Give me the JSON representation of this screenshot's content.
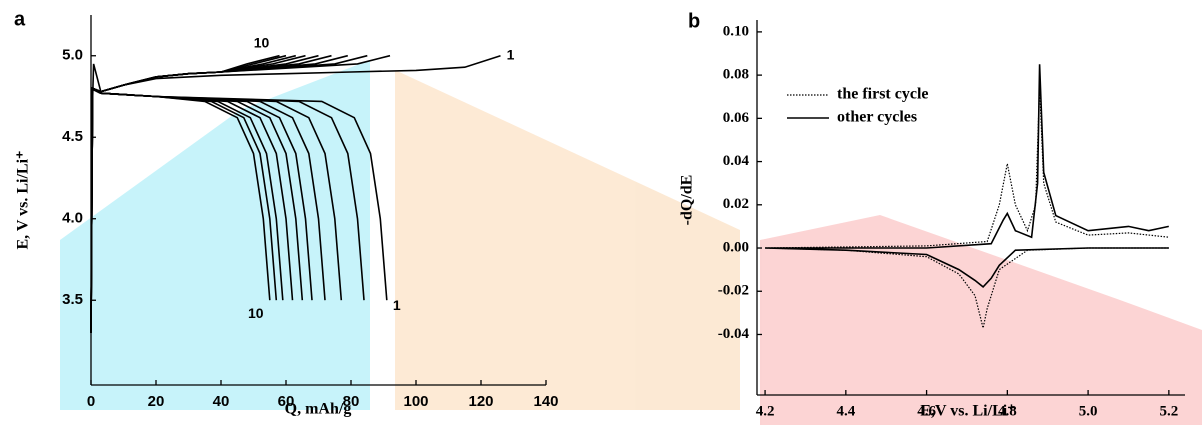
{
  "chart_data": [
    {
      "type": "line",
      "panel_label": "a",
      "xlabel": "Q, mAh/g",
      "ylabel": "E, V  vs. Li/Li⁺",
      "xlim": [
        0,
        140
      ],
      "ylim": [
        2.98,
        5.25
      ],
      "xticks": [
        0,
        20,
        40,
        60,
        80,
        100,
        120,
        140
      ],
      "yticks": [
        3.5,
        {
          "value": 4,
          "label": "4.0"
        },
        4.5,
        {
          "value": 5,
          "label": "5.0"
        }
      ],
      "annotations": [
        "10",
        "1",
        "10",
        "1"
      ],
      "series": [
        {
          "color": "#000000",
          "x": [
            0,
            0.3,
            0.8,
            3,
            10,
            20,
            40,
            60,
            80,
            100,
            115,
            126
          ],
          "values": [
            3.3,
            4.6,
            4.95,
            4.78,
            4.82,
            4.86,
            4.88,
            4.89,
            4.9,
            4.91,
            4.93,
            5.0
          ]
        },
        {
          "color": "#000000",
          "x": [
            0,
            0.5,
            3,
            10,
            20,
            30,
            40,
            82,
            92
          ],
          "values": [
            3.3,
            4.8,
            4.78,
            4.82,
            4.87,
            4.89,
            4.9,
            4.95,
            5.0
          ]
        },
        {
          "color": "#000000",
          "x": [
            0,
            0.5,
            3,
            10,
            20,
            30,
            40,
            75,
            85
          ],
          "values": [
            3.3,
            4.8,
            4.78,
            4.82,
            4.87,
            4.89,
            4.9,
            4.95,
            5.0
          ]
        },
        {
          "color": "#000000",
          "x": [
            0,
            0.5,
            3,
            10,
            20,
            30,
            40,
            69,
            79
          ],
          "values": [
            3.3,
            4.8,
            4.78,
            4.82,
            4.87,
            4.89,
            4.9,
            4.95,
            5.0
          ]
        },
        {
          "color": "#000000",
          "x": [
            0,
            0.5,
            3,
            10,
            20,
            30,
            40,
            64,
            74
          ],
          "values": [
            3.3,
            4.8,
            4.78,
            4.82,
            4.87,
            4.89,
            4.9,
            4.95,
            5.0
          ]
        },
        {
          "color": "#000000",
          "x": [
            0,
            0.5,
            3,
            10,
            20,
            30,
            40,
            60,
            70
          ],
          "values": [
            3.3,
            4.8,
            4.78,
            4.82,
            4.87,
            4.89,
            4.9,
            4.95,
            5.0
          ]
        },
        {
          "color": "#000000",
          "x": [
            0,
            0.5,
            3,
            10,
            20,
            30,
            40,
            56,
            66
          ],
          "values": [
            3.3,
            4.8,
            4.78,
            4.82,
            4.87,
            4.89,
            4.9,
            4.95,
            5.0
          ]
        },
        {
          "color": "#000000",
          "x": [
            0,
            0.5,
            3,
            10,
            20,
            30,
            40,
            53,
            63
          ],
          "values": [
            3.3,
            4.8,
            4.78,
            4.82,
            4.87,
            4.89,
            4.9,
            4.95,
            5.0
          ]
        },
        {
          "color": "#000000",
          "x": [
            0,
            0.5,
            3,
            10,
            20,
            30,
            40,
            50,
            60
          ],
          "values": [
            3.3,
            4.8,
            4.78,
            4.82,
            4.87,
            4.89,
            4.9,
            4.95,
            5.0
          ]
        },
        {
          "color": "#000000",
          "x": [
            0,
            0.5,
            3,
            10,
            20,
            30,
            40,
            48,
            58
          ],
          "values": [
            3.3,
            4.8,
            4.78,
            4.82,
            4.87,
            4.89,
            4.9,
            4.95,
            5.0
          ]
        },
        {
          "color": "#000000",
          "x": [
            0,
            3,
            20,
            71,
            81,
            86,
            89,
            91
          ],
          "values": [
            4.8,
            4.77,
            4.75,
            4.72,
            4.62,
            4.4,
            4.0,
            3.5
          ]
        },
        {
          "color": "#000000",
          "x": [
            0,
            3,
            20,
            64,
            74,
            79,
            82,
            84
          ],
          "values": [
            4.8,
            4.77,
            4.75,
            4.72,
            4.62,
            4.4,
            4.0,
            3.5
          ]
        },
        {
          "color": "#000000",
          "x": [
            0,
            3,
            20,
            57,
            67,
            72,
            75,
            77
          ],
          "values": [
            4.8,
            4.77,
            4.75,
            4.72,
            4.62,
            4.4,
            4.0,
            3.5
          ]
        },
        {
          "color": "#000000",
          "x": [
            0,
            3,
            20,
            52,
            62,
            67,
            70,
            72
          ],
          "values": [
            4.8,
            4.77,
            4.75,
            4.72,
            4.62,
            4.4,
            4.0,
            3.5
          ]
        },
        {
          "color": "#000000",
          "x": [
            0,
            3,
            20,
            48,
            58,
            63,
            66,
            68
          ],
          "values": [
            4.8,
            4.77,
            4.75,
            4.72,
            4.62,
            4.4,
            4.0,
            3.5
          ]
        },
        {
          "color": "#000000",
          "x": [
            0,
            3,
            20,
            45,
            55,
            60,
            63,
            65
          ],
          "values": [
            4.8,
            4.77,
            4.75,
            4.72,
            4.62,
            4.4,
            4.0,
            3.5
          ]
        },
        {
          "color": "#000000",
          "x": [
            0,
            3,
            20,
            42,
            52,
            57,
            60,
            62
          ],
          "values": [
            4.8,
            4.77,
            4.75,
            4.72,
            4.62,
            4.4,
            4.0,
            3.5
          ]
        },
        {
          "color": "#000000",
          "x": [
            0,
            3,
            20,
            39,
            49,
            54,
            57,
            59
          ],
          "values": [
            4.8,
            4.77,
            4.75,
            4.72,
            4.62,
            4.4,
            4.0,
            3.5
          ]
        },
        {
          "color": "#000000",
          "x": [
            0,
            3,
            20,
            37,
            47,
            52,
            55,
            57
          ],
          "values": [
            4.8,
            4.77,
            4.75,
            4.72,
            4.62,
            4.4,
            4.0,
            3.5
          ]
        },
        {
          "color": "#000000",
          "x": [
            0,
            3,
            20,
            35,
            45,
            50,
            53,
            55
          ],
          "values": [
            4.8,
            4.77,
            4.75,
            4.72,
            4.62,
            4.4,
            4.0,
            3.5
          ]
        }
      ]
    },
    {
      "type": "line",
      "panel_label": "b",
      "xlabel": "E,V  vs. Li/Li⁺",
      "ylabel": "-dQ/dE",
      "xlim": [
        4.18,
        5.24
      ],
      "ylim": [
        -0.068,
        0.1055
      ],
      "xticks": [
        4.2,
        4.4,
        4.6,
        4.8,
        {
          "value": 5,
          "label": "5.0"
        },
        5.2
      ],
      "yticks": [
        -0.04,
        -0.02,
        {
          "value": 0,
          "label": "0.00"
        },
        0.02,
        0.04,
        0.06,
        0.08,
        {
          "value": 0.1,
          "label": "0.10"
        }
      ],
      "legend": "upper left",
      "series": [
        {
          "name": "the first cycle",
          "color": "#000000",
          "linestyle": "dotted",
          "x": [
            4.2,
            4.6,
            4.75,
            4.78,
            4.8,
            4.82,
            4.85,
            4.87,
            4.88,
            4.89,
            4.92,
            5.0,
            5.1,
            5.2,
            null,
            5.2,
            5.0,
            4.85,
            4.78,
            4.75,
            4.74,
            4.72,
            4.68,
            4.6,
            4.4,
            4.2
          ],
          "values": [
            0,
            0.001,
            0.003,
            0.02,
            0.039,
            0.02,
            0.008,
            0.02,
            0.075,
            0.03,
            0.012,
            0.006,
            0.007,
            0.005,
            null,
            0,
            0,
            -0.001,
            -0.01,
            -0.028,
            -0.037,
            -0.022,
            -0.012,
            -0.004,
            -0.001,
            0
          ]
        },
        {
          "name": "other cycles",
          "color": "#000000",
          "linestyle": "solid",
          "x": [
            4.2,
            4.6,
            4.76,
            4.79,
            4.8,
            4.82,
            4.86,
            4.875,
            4.88,
            4.89,
            4.92,
            5.0,
            5.05,
            5.1,
            5.15,
            5.2,
            null,
            5.2,
            5.0,
            4.82,
            4.78,
            4.76,
            4.74,
            4.72,
            4.68,
            4.6,
            4.4,
            4.2
          ],
          "values": [
            0,
            0,
            0.002,
            0.013,
            0.016,
            0.008,
            0.005,
            0.03,
            0.085,
            0.035,
            0.015,
            0.008,
            0.009,
            0.01,
            0.008,
            0.01,
            null,
            0,
            0,
            -0.001,
            -0.008,
            -0.014,
            -0.018,
            -0.015,
            -0.01,
            -0.003,
            -0.001,
            0
          ]
        }
      ]
    }
  ]
}
